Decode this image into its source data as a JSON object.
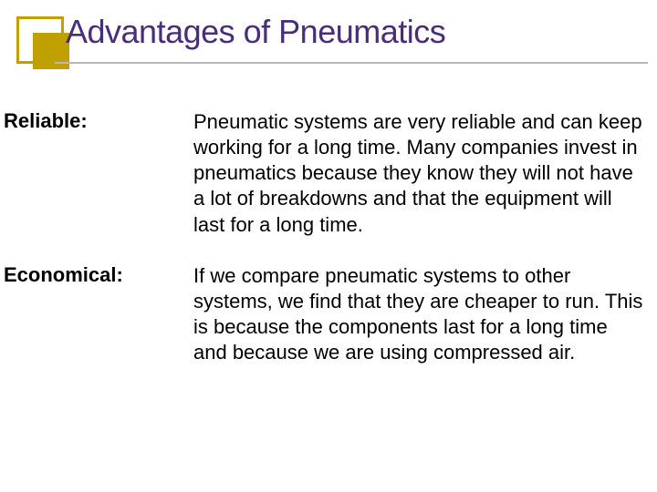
{
  "slide": {
    "title": "Advantages of Pneumatics",
    "title_color": "#4a2d7a",
    "title_fontsize": 36,
    "title_fontweight": "normal",
    "decoration": {
      "outer_border_color": "#c0a000",
      "inner_fill_color": "#c0a000"
    },
    "underline_color": "#b8b8b8",
    "body_color": "#000000",
    "body_fontsize": 22,
    "background_color": "#ffffff",
    "items": [
      {
        "label": "Reliable:",
        "description": "Pneumatic systems are very reliable and can keep working for a long time. Many companies invest in pneumatics because they know they will not have a  lot of breakdowns and that the equipment will last for a long time."
      },
      {
        "label": "Economical:",
        "description": "If we compare pneumatic systems to other systems, we find that they are cheaper to run. This is because the components last for a long time and because we are using compressed air."
      }
    ]
  }
}
